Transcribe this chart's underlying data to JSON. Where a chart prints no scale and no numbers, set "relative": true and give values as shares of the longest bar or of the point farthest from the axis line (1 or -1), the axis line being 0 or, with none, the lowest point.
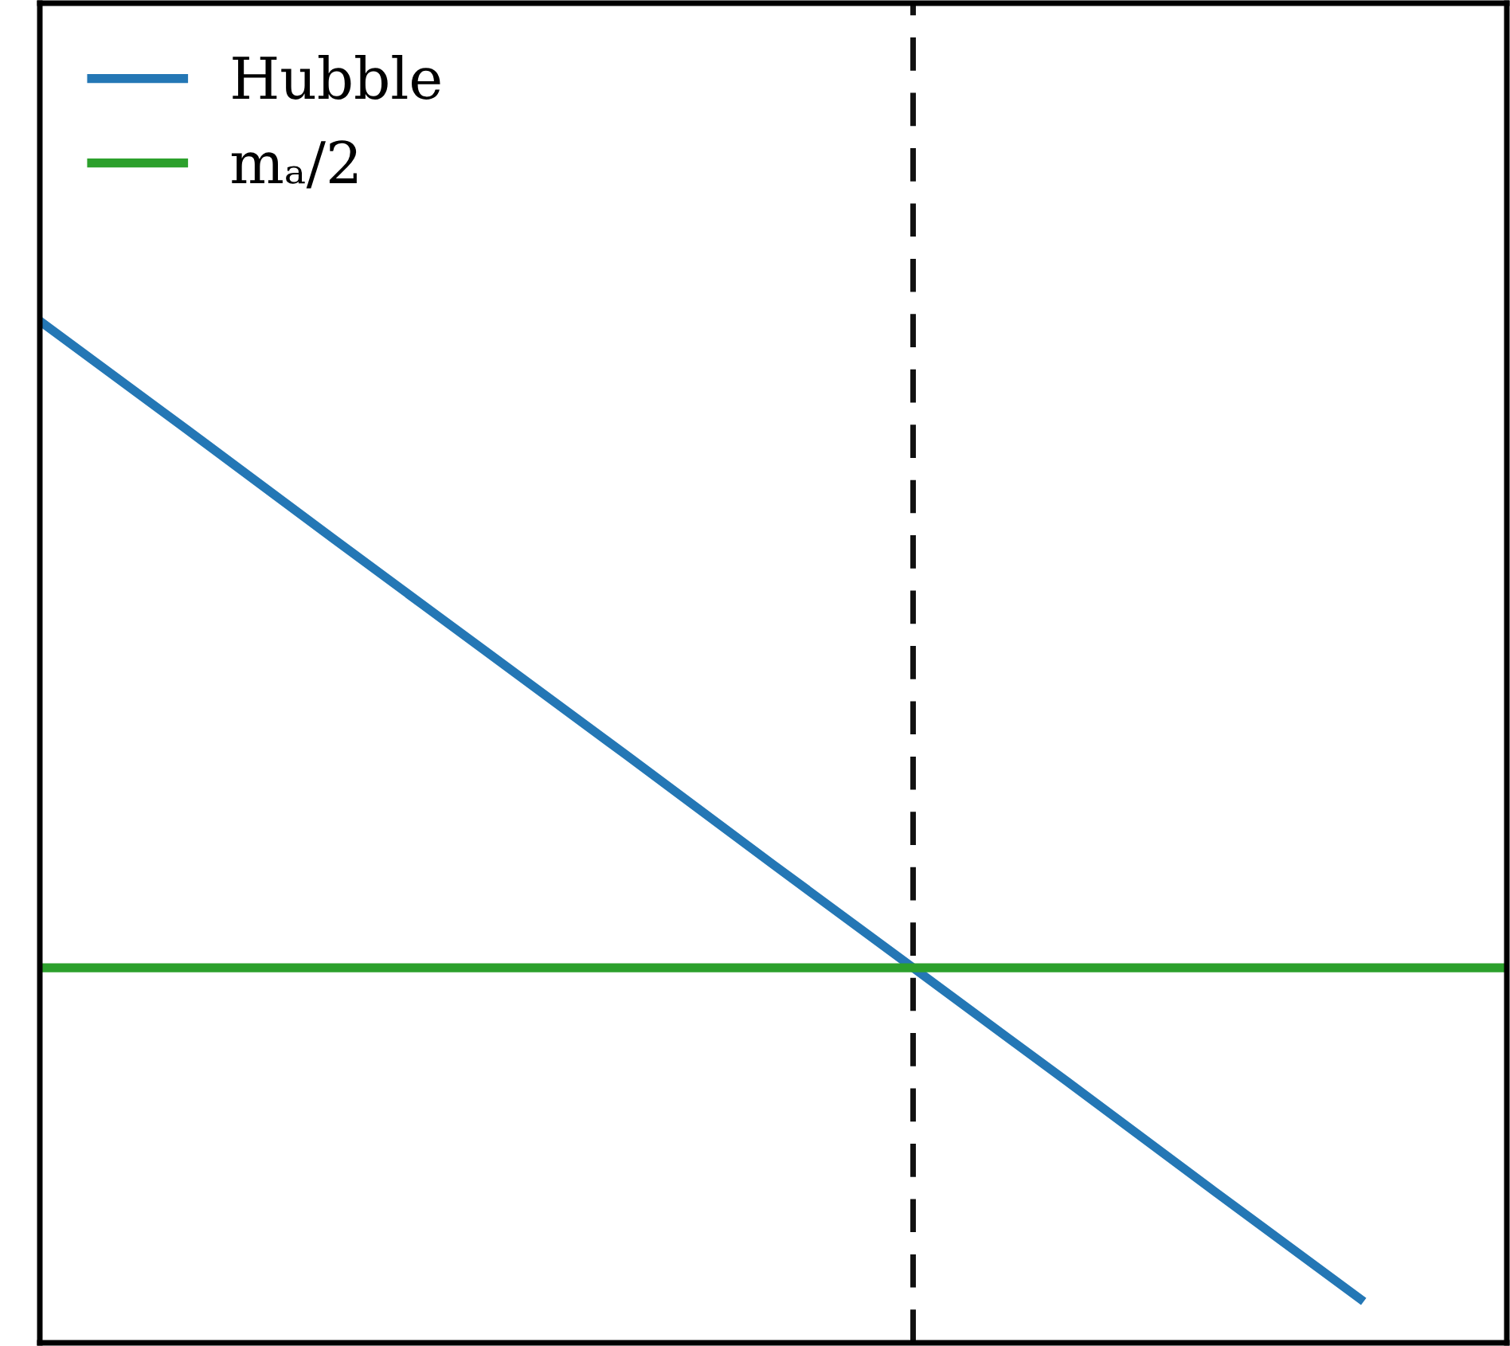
{
  "chart_data": {
    "type": "line",
    "relative": true,
    "categories": [
      null,
      null,
      null,
      null,
      null,
      null,
      null,
      null,
      null,
      null,
      null
    ],
    "series": [
      {
        "name": "Hubble",
        "color": "#2477b5",
        "values": [
          1,
          0.894,
          0.787,
          0.681,
          0.575,
          0.468,
          0.362,
          0.256,
          0.149,
          0.043,
          null
        ]
      },
      {
        "name": "mₐ/2",
        "color": "#2ca02c",
        "values": [
          0.367,
          0.367,
          0.367,
          0.367,
          0.367,
          0.367,
          0.367,
          0.367,
          0.367,
          0.367,
          0.367
        ]
      }
    ],
    "legend": "top left",
    "marker": "none",
    "line_style": "solid"
  }
}
